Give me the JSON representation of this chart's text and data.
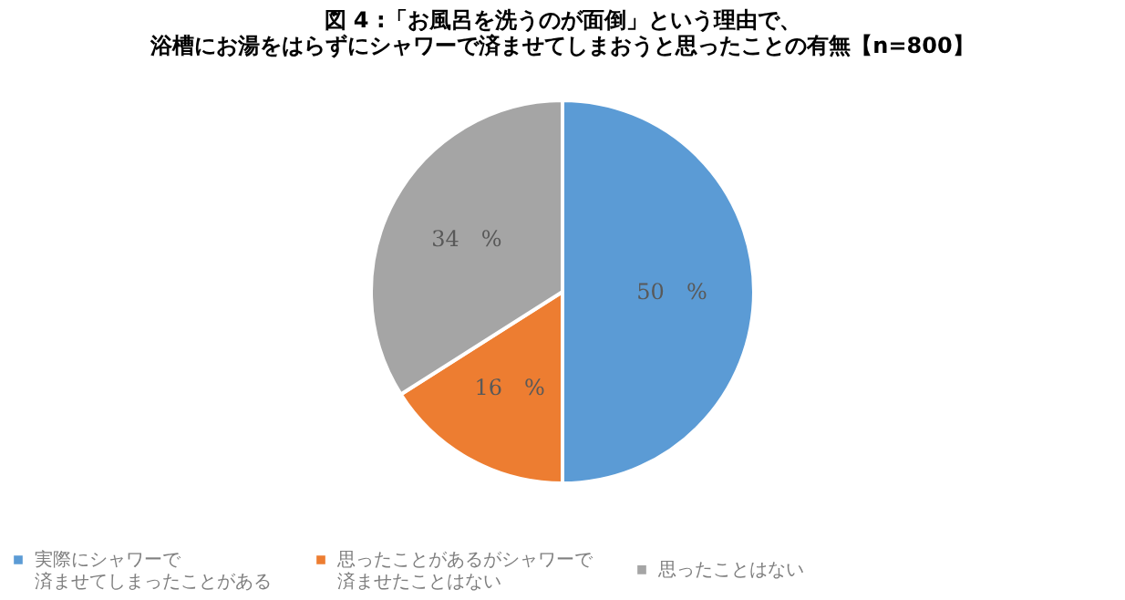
{
  "chart_data": {
    "type": "pie",
    "title": "図 4 :「お風呂を洗うのが面倒」という理由で、浴槽にお湯をはらずにシャワーで済ませてしまおうと思ったことの有無【n=800】",
    "categories": [
      "実際にシャワーで済ませてしまったことがある",
      "思ったことがあるがシャワーで済ませたことはない",
      "思ったことはない"
    ],
    "values": [
      50,
      16,
      34
    ],
    "colors": [
      "#5b9bd5",
      "#ed7d31",
      "#a5a5a5"
    ],
    "value_labels": [
      "50　%",
      "16　%",
      "34　%"
    ],
    "legend": "bottom"
  }
}
